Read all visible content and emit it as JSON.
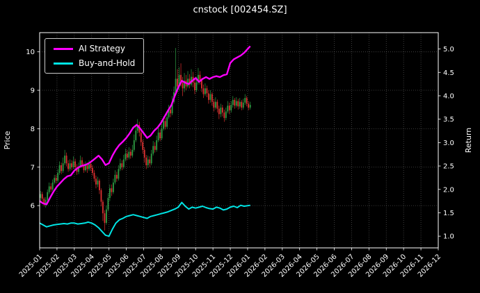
{
  "chart_data": {
    "type": "candlestick+line",
    "title": "cnstock [002454.SZ]",
    "ylabel_left": "Price",
    "ylabel_right": "Return",
    "x_tick_labels": [
      "2025-01",
      "2025-02",
      "2025-03",
      "2025-04",
      "2025-05",
      "2025-06",
      "2025-07",
      "2025-08",
      "2025-09",
      "2025-10",
      "2025-11",
      "2025-12",
      "2026-01",
      "2026-02",
      "2026-03",
      "2026-04",
      "2026-05",
      "2026-06",
      "2026-07",
      "2026-08",
      "2026-09",
      "2026-10",
      "2026-11",
      "2026-12"
    ],
    "x_range_months": [
      0,
      23
    ],
    "price_ticks": [
      6,
      7,
      8,
      9,
      10
    ],
    "price_ylim": [
      4.9,
      10.5
    ],
    "return_ticks": [
      1.0,
      1.5,
      2.0,
      2.5,
      3.0,
      3.5,
      4.0,
      4.5,
      5.0
    ],
    "return_ylim": [
      0.75,
      5.35
    ],
    "grid": true,
    "legend_position": "upper-left",
    "colors": {
      "background": "#000000",
      "text": "#ffffff",
      "grid": "#aaaaaa",
      "frame": "#ffffff",
      "up": "#2f9e44",
      "down": "#e03131",
      "ai_strategy": "#ff00ff",
      "buy_and_hold": "#00e5e5"
    },
    "candles": {
      "x0": 0.05,
      "dx": 0.1,
      "ohlc": [
        [
          6.2,
          6.38,
          6.12,
          6.3
        ],
        [
          6.3,
          6.36,
          6.1,
          6.18
        ],
        [
          6.18,
          6.22,
          5.98,
          6.05
        ],
        [
          6.05,
          6.22,
          5.95,
          6.15
        ],
        [
          6.15,
          6.42,
          6.1,
          6.35
        ],
        [
          6.35,
          6.6,
          6.3,
          6.5
        ],
        [
          6.5,
          6.58,
          6.35,
          6.42
        ],
        [
          6.42,
          6.68,
          6.38,
          6.6
        ],
        [
          6.6,
          6.8,
          6.55,
          6.72
        ],
        [
          6.72,
          6.8,
          6.58,
          6.65
        ],
        [
          6.65,
          6.95,
          6.6,
          6.85
        ],
        [
          6.85,
          7.15,
          6.8,
          7.05
        ],
        [
          7.05,
          7.12,
          6.82,
          6.9
        ],
        [
          6.9,
          7.25,
          6.85,
          7.1
        ],
        [
          7.1,
          7.45,
          7.05,
          7.3
        ],
        [
          7.3,
          7.38,
          7.02,
          7.1
        ],
        [
          7.1,
          7.18,
          6.88,
          6.95
        ],
        [
          6.95,
          7.2,
          6.9,
          7.1
        ],
        [
          7.1,
          7.18,
          6.92,
          7.0
        ],
        [
          7.0,
          7.28,
          6.95,
          7.15
        ],
        [
          7.15,
          7.22,
          6.92,
          7.0
        ],
        [
          7.0,
          7.08,
          6.8,
          6.88
        ],
        [
          6.88,
          7.12,
          6.82,
          7.02
        ],
        [
          7.02,
          7.3,
          6.98,
          7.18
        ],
        [
          7.18,
          7.26,
          6.98,
          7.05
        ],
        [
          7.05,
          7.12,
          6.85,
          6.92
        ],
        [
          6.92,
          7.15,
          6.88,
          7.05
        ],
        [
          7.05,
          7.12,
          6.85,
          6.95
        ],
        [
          6.95,
          7.18,
          6.9,
          7.08
        ],
        [
          7.08,
          7.15,
          6.9,
          6.98
        ],
        [
          6.98,
          7.05,
          6.78,
          6.85
        ],
        [
          6.85,
          6.92,
          6.62,
          6.7
        ],
        [
          6.7,
          6.78,
          6.45,
          6.55
        ],
        [
          6.55,
          6.75,
          6.48,
          6.65
        ],
        [
          6.65,
          6.7,
          6.3,
          6.4
        ],
        [
          6.4,
          6.45,
          5.98,
          6.1
        ],
        [
          6.1,
          6.15,
          5.6,
          5.8
        ],
        [
          5.8,
          5.88,
          5.35,
          5.55
        ],
        [
          5.55,
          6.0,
          5.5,
          5.9
        ],
        [
          5.9,
          6.32,
          5.85,
          6.2
        ],
        [
          6.2,
          6.55,
          6.12,
          6.45
        ],
        [
          6.45,
          6.55,
          6.25,
          6.35
        ],
        [
          6.35,
          6.7,
          6.3,
          6.6
        ],
        [
          6.6,
          6.92,
          6.55,
          6.8
        ],
        [
          6.8,
          6.88,
          6.62,
          6.7
        ],
        [
          6.7,
          7.05,
          6.65,
          6.95
        ],
        [
          6.95,
          7.22,
          6.9,
          7.1
        ],
        [
          7.1,
          7.18,
          6.92,
          7.0
        ],
        [
          7.0,
          7.32,
          6.95,
          7.2
        ],
        [
          7.2,
          7.48,
          7.15,
          7.35
        ],
        [
          7.35,
          7.45,
          7.18,
          7.25
        ],
        [
          7.25,
          7.52,
          7.2,
          7.4
        ],
        [
          7.4,
          7.48,
          7.22,
          7.3
        ],
        [
          7.3,
          7.58,
          7.25,
          7.45
        ],
        [
          7.45,
          7.85,
          7.4,
          7.7
        ],
        [
          7.7,
          8.1,
          7.65,
          7.95
        ],
        [
          7.95,
          8.25,
          7.88,
          8.1
        ],
        [
          8.1,
          8.18,
          7.8,
          7.9
        ],
        [
          7.9,
          7.98,
          7.55,
          7.65
        ],
        [
          7.65,
          7.72,
          7.35,
          7.45
        ],
        [
          7.45,
          7.52,
          7.12,
          7.25
        ],
        [
          7.25,
          7.32,
          6.95,
          7.05
        ],
        [
          7.05,
          7.3,
          6.98,
          7.2
        ],
        [
          7.2,
          7.28,
          7.0,
          7.1
        ],
        [
          7.1,
          7.45,
          7.05,
          7.35
        ],
        [
          7.35,
          7.68,
          7.3,
          7.55
        ],
        [
          7.55,
          7.65,
          7.38,
          7.45
        ],
        [
          7.45,
          7.82,
          7.4,
          7.7
        ],
        [
          7.7,
          8.02,
          7.65,
          7.9
        ],
        [
          7.9,
          7.98,
          7.68,
          7.75
        ],
        [
          7.75,
          8.12,
          7.7,
          8.0
        ],
        [
          8.0,
          8.32,
          7.95,
          8.2
        ],
        [
          8.2,
          8.28,
          7.98,
          8.05
        ],
        [
          8.05,
          8.42,
          8.0,
          8.3
        ],
        [
          8.3,
          8.62,
          8.25,
          8.5
        ],
        [
          8.5,
          8.58,
          8.3,
          8.4
        ],
        [
          8.4,
          8.85,
          8.35,
          8.7
        ],
        [
          8.7,
          9.1,
          8.65,
          8.95
        ],
        [
          8.95,
          10.1,
          8.9,
          9.3
        ],
        [
          9.3,
          9.55,
          8.95,
          9.1
        ],
        [
          9.1,
          9.6,
          9.0,
          9.4
        ],
        [
          9.4,
          9.7,
          9.1,
          9.2
        ],
        [
          9.2,
          9.35,
          8.85,
          9.05
        ],
        [
          9.05,
          9.45,
          8.95,
          9.25
        ],
        [
          9.25,
          9.4,
          9.0,
          9.1
        ],
        [
          9.1,
          9.5,
          9.05,
          9.3
        ],
        [
          9.3,
          9.42,
          9.05,
          9.15
        ],
        [
          9.15,
          9.55,
          9.1,
          9.35
        ],
        [
          9.35,
          9.48,
          9.08,
          9.2
        ],
        [
          9.2,
          9.3,
          8.9,
          9.0
        ],
        [
          9.0,
          9.35,
          8.95,
          9.2
        ],
        [
          9.2,
          9.58,
          9.15,
          9.4
        ],
        [
          9.4,
          9.5,
          9.15,
          9.25
        ],
        [
          9.25,
          9.32,
          8.95,
          9.05
        ],
        [
          9.05,
          9.15,
          8.8,
          8.9
        ],
        [
          8.9,
          9.18,
          8.85,
          9.05
        ],
        [
          9.05,
          9.12,
          8.82,
          8.92
        ],
        [
          8.92,
          9.0,
          8.65,
          8.75
        ],
        [
          8.75,
          9.0,
          8.68,
          8.9
        ],
        [
          8.9,
          8.95,
          8.6,
          8.7
        ],
        [
          8.7,
          8.78,
          8.45,
          8.55
        ],
        [
          8.55,
          8.82,
          8.5,
          8.7
        ],
        [
          8.7,
          8.76,
          8.42,
          8.52
        ],
        [
          8.52,
          8.6,
          8.25,
          8.38
        ],
        [
          8.38,
          8.65,
          8.3,
          8.55
        ],
        [
          8.55,
          8.62,
          8.32,
          8.42
        ],
        [
          8.42,
          8.5,
          8.18,
          8.28
        ],
        [
          8.28,
          8.55,
          8.22,
          8.45
        ],
        [
          8.45,
          8.72,
          8.4,
          8.6
        ],
        [
          8.6,
          8.68,
          8.38,
          8.48
        ],
        [
          8.48,
          8.72,
          8.42,
          8.62
        ],
        [
          8.62,
          8.85,
          8.55,
          8.75
        ],
        [
          8.75,
          8.8,
          8.52,
          8.6
        ],
        [
          8.6,
          8.82,
          8.55,
          8.72
        ],
        [
          8.72,
          8.78,
          8.5,
          8.58
        ],
        [
          8.58,
          8.8,
          8.52,
          8.7
        ],
        [
          8.7,
          8.75,
          8.48,
          8.55
        ],
        [
          8.55,
          8.78,
          8.5,
          8.68
        ],
        [
          8.68,
          8.9,
          8.62,
          8.8
        ],
        [
          8.8,
          8.85,
          8.58,
          8.65
        ],
        [
          8.65,
          8.72,
          8.48,
          8.55
        ],
        [
          8.55,
          8.7,
          8.5,
          8.62
        ]
      ]
    },
    "lines": [
      {
        "name": "AI Strategy",
        "color": "#ff00ff",
        "axis": "return",
        "points": [
          [
            0,
            1.75
          ],
          [
            0.2,
            1.7
          ],
          [
            0.4,
            1.68
          ],
          [
            0.6,
            1.82
          ],
          [
            0.8,
            1.95
          ],
          [
            1.0,
            2.06
          ],
          [
            1.2,
            2.14
          ],
          [
            1.4,
            2.22
          ],
          [
            1.6,
            2.28
          ],
          [
            1.8,
            2.3
          ],
          [
            2.0,
            2.4
          ],
          [
            2.2,
            2.46
          ],
          [
            2.4,
            2.5
          ],
          [
            2.6,
            2.52
          ],
          [
            2.8,
            2.55
          ],
          [
            3.0,
            2.6
          ],
          [
            3.2,
            2.66
          ],
          [
            3.4,
            2.72
          ],
          [
            3.6,
            2.64
          ],
          [
            3.8,
            2.52
          ],
          [
            4.0,
            2.56
          ],
          [
            4.2,
            2.72
          ],
          [
            4.4,
            2.85
          ],
          [
            4.6,
            2.95
          ],
          [
            4.8,
            3.02
          ],
          [
            5.0,
            3.1
          ],
          [
            5.2,
            3.2
          ],
          [
            5.4,
            3.32
          ],
          [
            5.6,
            3.38
          ],
          [
            5.8,
            3.3
          ],
          [
            6.0,
            3.2
          ],
          [
            6.2,
            3.1
          ],
          [
            6.4,
            3.15
          ],
          [
            6.6,
            3.25
          ],
          [
            6.8,
            3.32
          ],
          [
            7.0,
            3.42
          ],
          [
            7.2,
            3.55
          ],
          [
            7.4,
            3.68
          ],
          [
            7.6,
            3.8
          ],
          [
            7.8,
            4.0
          ],
          [
            8.0,
            4.18
          ],
          [
            8.2,
            4.32
          ],
          [
            8.4,
            4.28
          ],
          [
            8.6,
            4.25
          ],
          [
            8.8,
            4.32
          ],
          [
            9.0,
            4.38
          ],
          [
            9.2,
            4.3
          ],
          [
            9.4,
            4.36
          ],
          [
            9.6,
            4.4
          ],
          [
            9.8,
            4.36
          ],
          [
            10.0,
            4.4
          ],
          [
            10.2,
            4.42
          ],
          [
            10.4,
            4.4
          ],
          [
            10.6,
            4.44
          ],
          [
            10.8,
            4.46
          ],
          [
            11.0,
            4.7
          ],
          [
            11.2,
            4.78
          ],
          [
            11.4,
            4.82
          ],
          [
            11.6,
            4.86
          ],
          [
            11.8,
            4.92
          ],
          [
            12.0,
            5.0
          ],
          [
            12.15,
            5.06
          ]
        ]
      },
      {
        "name": "Buy-and-Hold",
        "color": "#00e5e5",
        "axis": "return",
        "points": [
          [
            0,
            1.28
          ],
          [
            0.2,
            1.24
          ],
          [
            0.4,
            1.2
          ],
          [
            0.6,
            1.22
          ],
          [
            0.8,
            1.24
          ],
          [
            1.0,
            1.25
          ],
          [
            1.2,
            1.26
          ],
          [
            1.4,
            1.27
          ],
          [
            1.6,
            1.26
          ],
          [
            1.8,
            1.28
          ],
          [
            2.0,
            1.28
          ],
          [
            2.2,
            1.26
          ],
          [
            2.4,
            1.27
          ],
          [
            2.6,
            1.28
          ],
          [
            2.8,
            1.3
          ],
          [
            3.0,
            1.28
          ],
          [
            3.2,
            1.24
          ],
          [
            3.4,
            1.18
          ],
          [
            3.6,
            1.1
          ],
          [
            3.8,
            1.02
          ],
          [
            4.0,
            1.0
          ],
          [
            4.2,
            1.15
          ],
          [
            4.4,
            1.28
          ],
          [
            4.6,
            1.35
          ],
          [
            4.8,
            1.38
          ],
          [
            5.0,
            1.42
          ],
          [
            5.2,
            1.44
          ],
          [
            5.4,
            1.46
          ],
          [
            5.6,
            1.44
          ],
          [
            5.8,
            1.42
          ],
          [
            6.0,
            1.4
          ],
          [
            6.2,
            1.38
          ],
          [
            6.4,
            1.42
          ],
          [
            6.6,
            1.44
          ],
          [
            6.8,
            1.46
          ],
          [
            7.0,
            1.48
          ],
          [
            7.2,
            1.5
          ],
          [
            7.4,
            1.52
          ],
          [
            7.6,
            1.55
          ],
          [
            7.8,
            1.58
          ],
          [
            8.0,
            1.62
          ],
          [
            8.2,
            1.72
          ],
          [
            8.4,
            1.64
          ],
          [
            8.6,
            1.58
          ],
          [
            8.8,
            1.62
          ],
          [
            9.0,
            1.6
          ],
          [
            9.2,
            1.62
          ],
          [
            9.4,
            1.64
          ],
          [
            9.6,
            1.61
          ],
          [
            9.8,
            1.59
          ],
          [
            10.0,
            1.58
          ],
          [
            10.2,
            1.62
          ],
          [
            10.4,
            1.6
          ],
          [
            10.6,
            1.56
          ],
          [
            10.8,
            1.58
          ],
          [
            11.0,
            1.62
          ],
          [
            11.2,
            1.64
          ],
          [
            11.4,
            1.61
          ],
          [
            11.6,
            1.66
          ],
          [
            11.8,
            1.64
          ],
          [
            12.0,
            1.65
          ],
          [
            12.15,
            1.66
          ]
        ]
      }
    ]
  }
}
